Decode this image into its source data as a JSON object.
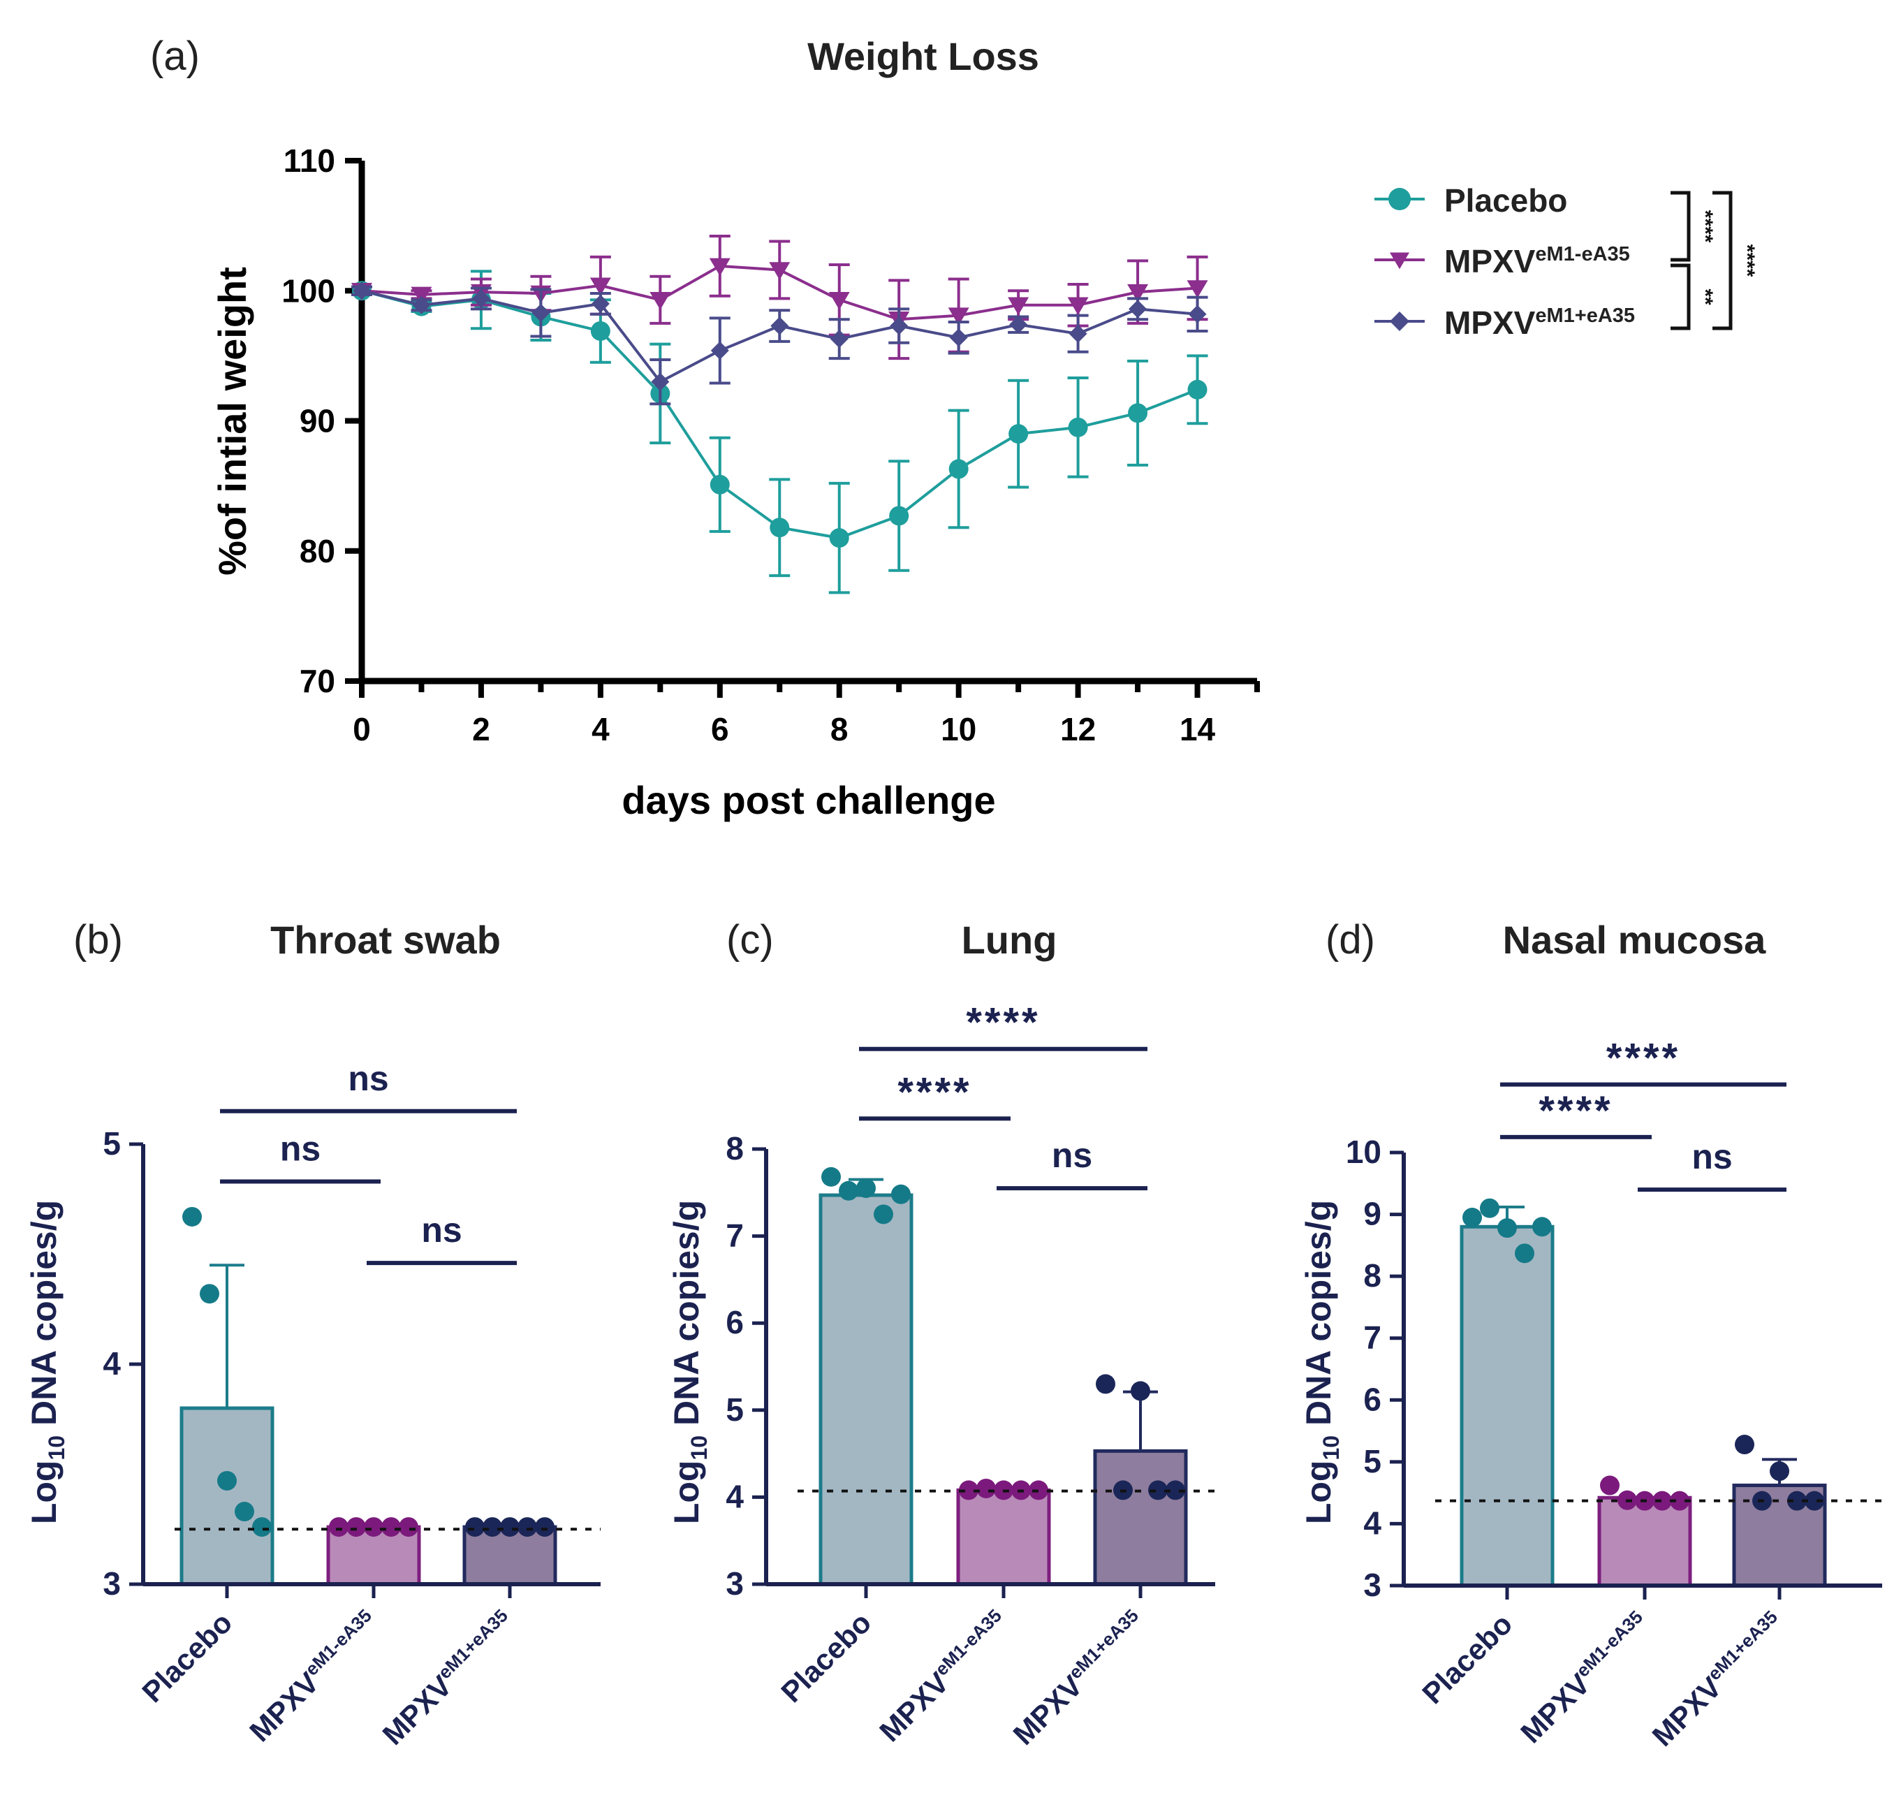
{
  "colors": {
    "placebo": "#1e9e9c",
    "em1_minus": "#8b2e8d",
    "em1_plus": "#4a4b8a",
    "axis_dark": "#1b2250",
    "axis_black": "#000000",
    "bar_placebo_fill": "#a3b7c3",
    "bar_placebo_edge": "#1c7c8a",
    "bar_minus_fill": "#b88ab8",
    "bar_minus_edge": "#7d1f7e",
    "bar_plus_fill": "#8e7d9e",
    "bar_plus_edge": "#222a5e",
    "dot_placebo": "#157a88",
    "dot_minus": "#7b1a7c",
    "dot_plus": "#1b2658"
  },
  "chart_data": [
    {
      "id": "a",
      "type": "line",
      "panel_label": "(a)",
      "title": "Weight Loss",
      "xlabel": "days post challenge",
      "ylabel": "%of intial weight",
      "xlim": [
        0,
        15
      ],
      "ylim": [
        70,
        110
      ],
      "xticks": [
        0,
        2,
        4,
        6,
        8,
        10,
        12,
        14
      ],
      "xtick_labels": [
        "0",
        "2",
        "4",
        "6",
        "8",
        "10",
        "12",
        "14"
      ],
      "yticks": [
        70,
        80,
        90,
        100,
        110
      ],
      "ytick_labels": [
        "70",
        "80",
        "90",
        "100",
        "110"
      ],
      "x": [
        0,
        1,
        2,
        3,
        4,
        5,
        6,
        7,
        8,
        9,
        10,
        11,
        12,
        13,
        14
      ],
      "series": [
        {
          "key": "placebo",
          "marker": "circle",
          "legend_main": "Placebo",
          "legend_sup": "",
          "values": [
            100,
            98.8,
            99.3,
            98.0,
            96.9,
            92.1,
            85.1,
            81.8,
            81.0,
            82.7,
            86.3,
            89.0,
            89.5,
            90.6,
            92.4
          ],
          "errors": [
            0.3,
            0.4,
            2.2,
            1.8,
            2.4,
            3.8,
            3.6,
            3.7,
            4.2,
            4.2,
            4.5,
            4.1,
            3.8,
            4.0,
            2.6
          ]
        },
        {
          "key": "em1_minus",
          "marker": "triangle-down",
          "legend_main": "MPXV",
          "legend_sup": "eM1-eA35",
          "values": [
            100,
            99.7,
            99.9,
            99.8,
            100.4,
            99.3,
            101.9,
            101.6,
            99.3,
            97.8,
            98.1,
            98.9,
            98.9,
            99.9,
            100.2
          ],
          "errors": [
            0.3,
            0.3,
            1.0,
            1.3,
            2.2,
            1.8,
            2.3,
            2.2,
            2.7,
            3.0,
            2.8,
            1.1,
            1.6,
            2.4,
            2.4
          ]
        },
        {
          "key": "em1_plus",
          "marker": "diamond",
          "legend_main": "MPXV",
          "legend_sup": "eM1+eA35",
          "values": [
            100,
            98.9,
            99.4,
            98.3,
            99.0,
            93.0,
            95.4,
            97.3,
            96.3,
            97.3,
            96.4,
            97.4,
            96.7,
            98.6,
            98.2
          ],
          "errors": [
            0.3,
            0.4,
            0.8,
            1.8,
            0.8,
            1.7,
            2.5,
            1.2,
            1.5,
            1.3,
            1.2,
            0.6,
            1.4,
            0.8,
            1.3
          ]
        }
      ],
      "legend_stats": [
        "****",
        "**",
        "****"
      ]
    },
    {
      "id": "b",
      "type": "bar",
      "panel_label": "(b)",
      "title": "Throat swab",
      "ylabel_main": "Log",
      "ylabel_sub": "10",
      "ylabel_rest": " DNA copies/g",
      "ylim": [
        3,
        5
      ],
      "yticks": [
        3,
        4,
        5
      ],
      "ytick_labels": [
        "3",
        "4",
        "5"
      ],
      "detection_limit": 3.25,
      "categories": [
        {
          "main": "Placebo",
          "sup": ""
        },
        {
          "main": "MPXV",
          "sup": "eM1-eA35"
        },
        {
          "main": "MPXV",
          "sup": "eM1+eA35"
        }
      ],
      "values": [
        3.8,
        3.26,
        3.26
      ],
      "errors": [
        0.65,
        0,
        0
      ],
      "points": [
        [
          4.67,
          4.32,
          3.47,
          3.33,
          3.26
        ],
        [
          3.26,
          3.26,
          3.26,
          3.26,
          3.26
        ],
        [
          3.26,
          3.26,
          3.26,
          3.26,
          3.26
        ]
      ],
      "comparisons": [
        {
          "from": 0,
          "to": 1,
          "y": 4.83,
          "label": "ns"
        },
        {
          "from": 1,
          "to": 2,
          "y": 4.46,
          "label": "ns"
        },
        {
          "from": 0,
          "to": 2,
          "y": 5.15,
          "label": "ns"
        }
      ]
    },
    {
      "id": "c",
      "type": "bar",
      "panel_label": "(c)",
      "title": "Lung",
      "ylabel_main": "Log",
      "ylabel_sub": "10",
      "ylabel_rest": " DNA copies/g",
      "ylim": [
        3,
        8
      ],
      "yticks": [
        3,
        4,
        5,
        6,
        7,
        8
      ],
      "ytick_labels": [
        "3",
        "4",
        "5",
        "6",
        "7",
        "8"
      ],
      "detection_limit": 4.07,
      "categories": [
        {
          "main": "Placebo",
          "sup": ""
        },
        {
          "main": "MPXV",
          "sup": "eM1-eA35"
        },
        {
          "main": "MPXV",
          "sup": "eM1+eA35"
        }
      ],
      "values": [
        7.47,
        4.08,
        4.53
      ],
      "errors": [
        0.18,
        0,
        0.68
      ],
      "points": [
        [
          7.68,
          7.52,
          7.55,
          7.25,
          7.48
        ],
        [
          4.08,
          4.1,
          4.08,
          4.08,
          4.08
        ],
        [
          5.3,
          4.08,
          5.22,
          4.08,
          4.08
        ]
      ],
      "comparisons": [
        {
          "from": 0,
          "to": 1,
          "y": 8.35,
          "label": "****"
        },
        {
          "from": 1,
          "to": 2,
          "y": 7.55,
          "label": "ns"
        },
        {
          "from": 0,
          "to": 2,
          "y": 9.15,
          "label": "****"
        }
      ]
    },
    {
      "id": "d",
      "type": "bar",
      "panel_label": "(d)",
      "title": "Nasal mucosa",
      "ylabel_main": "Log",
      "ylabel_sub": "10",
      "ylabel_rest": " DNA copies/g",
      "ylim": [
        3,
        10
      ],
      "yticks": [
        3,
        4,
        5,
        6,
        7,
        8,
        9,
        10
      ],
      "ytick_labels": [
        "3",
        "4",
        "5",
        "6",
        "7",
        "8",
        "9",
        "10"
      ],
      "detection_limit": 4.37,
      "categories": [
        {
          "main": "Placebo",
          "sup": ""
        },
        {
          "main": "MPXV",
          "sup": "eM1-eA35"
        },
        {
          "main": "MPXV",
          "sup": "eM1+eA35"
        }
      ],
      "values": [
        8.8,
        4.42,
        4.62
      ],
      "errors": [
        0.32,
        0,
        0.42
      ],
      "points": [
        [
          8.95,
          9.1,
          8.78,
          8.37,
          8.8
        ],
        [
          4.62,
          4.38,
          4.37,
          4.37,
          4.37
        ],
        [
          5.28,
          4.37,
          4.85,
          4.37,
          4.37
        ]
      ],
      "comparisons": [
        {
          "from": 0,
          "to": 1,
          "y": 10.25,
          "label": "****"
        },
        {
          "from": 1,
          "to": 2,
          "y": 9.4,
          "label": "ns"
        },
        {
          "from": 0,
          "to": 2,
          "y": 11.1,
          "label": "****"
        }
      ]
    }
  ]
}
